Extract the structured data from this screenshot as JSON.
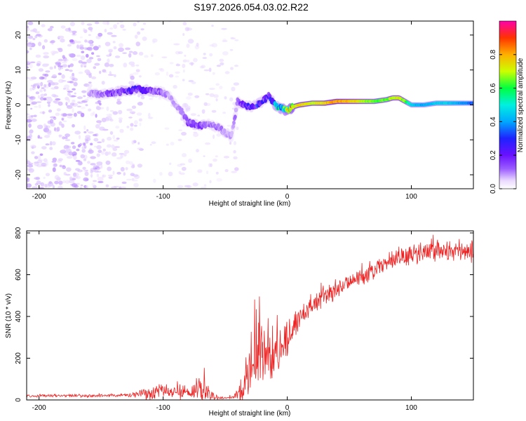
{
  "figure_title": "S197.2026.054.03.02.R22",
  "colors": {
    "snr_line": "#ee2222",
    "spectrogram_cmap": [
      "#ffffff",
      "#e9d8ff",
      "#c9a6ff",
      "#9a5cff",
      "#6a11ff",
      "#2222ff",
      "#00a8ff",
      "#00f0e0",
      "#00ff40",
      "#ccff00",
      "#ffb000",
      "#ff3300",
      "#ff00aa"
    ]
  },
  "chart_data": [
    {
      "type": "heatmap",
      "title": "",
      "xlabel": "Height of straight line (km)",
      "ylabel": "Frequency (Hz)",
      "xlim": [
        -210,
        150
      ],
      "ylim": [
        -24,
        24
      ],
      "xticks": [
        -200,
        -100,
        0,
        100
      ],
      "xtick_labels": [
        "-200",
        "-100",
        "0",
        "100"
      ],
      "yticks": [
        -20,
        -10,
        0,
        10,
        20
      ],
      "ytick_labels": [
        "-20",
        "-10",
        "0",
        "10",
        "20"
      ],
      "colorbar": {
        "label": "Normalized spectral amplitude",
        "range": [
          0,
          1
        ],
        "ticks": [
          0.0,
          0.2,
          0.4,
          0.6,
          0.8
        ],
        "tick_labels": [
          "0.0",
          "0.2",
          "0.4",
          "0.6",
          "0.8"
        ]
      },
      "ridge": {
        "x": [
          -160,
          -150,
          -140,
          -130,
          -120,
          -110,
          -100,
          -95,
          -90,
          -85,
          -80,
          -75,
          -70,
          -65,
          -60,
          -55,
          -50,
          -45,
          -40,
          -35,
          -30,
          -25,
          -20,
          -15,
          -10,
          -5,
          0,
          5,
          10,
          20,
          30,
          40,
          50,
          60,
          70,
          80,
          85,
          90,
          95,
          100,
          110,
          120,
          130,
          140,
          150
        ],
        "freq": [
          3.5,
          3,
          3.5,
          4,
          4.5,
          4,
          3.5,
          2.5,
          0,
          -2,
          -5,
          -5.5,
          -6,
          -5.5,
          -6,
          -6.5,
          -8,
          -9,
          1,
          0,
          -0.5,
          0,
          1,
          2.5,
          0,
          -1,
          -1.5,
          -0.5,
          0,
          0.5,
          0.5,
          1,
          1,
          1,
          1,
          1.5,
          2,
          2,
          1,
          0,
          0,
          0.5,
          0.5,
          0.5,
          0.5
        ],
        "amp": [
          0.15,
          0.2,
          0.25,
          0.3,
          0.3,
          0.25,
          0.2,
          0.15,
          0.15,
          0.2,
          0.25,
          0.25,
          0.25,
          0.2,
          0.2,
          0.2,
          0.15,
          0.15,
          0.2,
          0.3,
          0.3,
          0.35,
          0.3,
          0.3,
          0.45,
          0.55,
          0.65,
          0.75,
          0.8,
          0.75,
          0.8,
          0.85,
          0.8,
          0.75,
          0.7,
          0.7,
          0.75,
          0.75,
          0.7,
          0.55,
          0.5,
          0.55,
          0.55,
          0.5,
          0.45
        ]
      },
      "noise_region_x": [
        -210,
        -40
      ],
      "noise_level": 0.06
    },
    {
      "type": "line",
      "title": "",
      "xlabel": "Height of straight line (km)",
      "ylabel": "SNR (10 * v/v)",
      "xlim": [
        -210,
        150
      ],
      "ylim": [
        0,
        810
      ],
      "xticks": [
        -200,
        -100,
        0,
        100
      ],
      "xtick_labels": [
        "-200",
        "-100",
        "0",
        "100"
      ],
      "yticks": [
        0,
        200,
        400,
        600,
        800
      ],
      "ytick_labels": [
        "0",
        "200",
        "400",
        "600",
        "800"
      ],
      "envelope": {
        "x": [
          -210,
          -160,
          -130,
          -110,
          -100,
          -90,
          -80,
          -75,
          -70,
          -65,
          -60,
          -55,
          -50,
          -45,
          -40,
          -35,
          -30,
          -25,
          -20,
          -15,
          -10,
          -5,
          0,
          5,
          10,
          20,
          30,
          40,
          50,
          60,
          70,
          80,
          90,
          100,
          110,
          120,
          130,
          140,
          150
        ],
        "base": [
          20,
          20,
          22,
          30,
          40,
          35,
          30,
          35,
          45,
          40,
          20,
          10,
          8,
          10,
          20,
          80,
          150,
          190,
          200,
          210,
          220,
          250,
          280,
          350,
          400,
          450,
          490,
          530,
          560,
          590,
          620,
          650,
          680,
          700,
          700,
          705,
          710,
          710,
          700
        ],
        "noise": [
          8,
          8,
          10,
          40,
          50,
          40,
          35,
          50,
          80,
          70,
          30,
          8,
          6,
          8,
          30,
          120,
          180,
          200,
          200,
          170,
          150,
          130,
          110,
          90,
          70,
          60,
          60,
          60,
          55,
          55,
          55,
          55,
          60,
          65,
          65,
          65,
          60,
          60,
          55
        ]
      }
    }
  ]
}
